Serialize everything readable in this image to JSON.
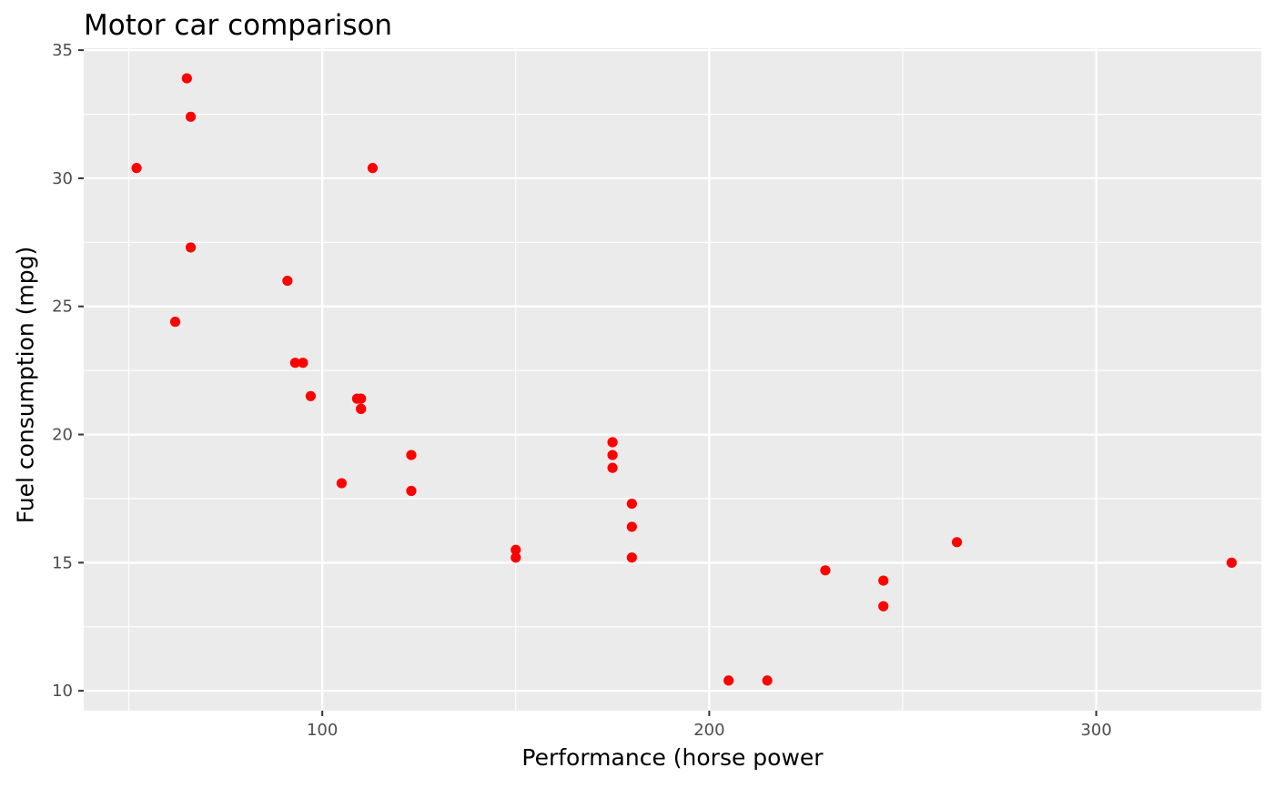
{
  "chart_data": {
    "type": "scatter",
    "title": "Motor car comparison",
    "xlabel": "Performance (horse power",
    "ylabel": "Fuel consumption (mpg)",
    "xlim": [
      38.35,
      342.65
    ],
    "ylim": [
      9.225,
      35.075
    ],
    "x_ticks": [
      100,
      200,
      300
    ],
    "y_ticks": [
      10,
      15,
      20,
      25,
      30,
      35
    ],
    "grid": true,
    "point_color": "#ff0000",
    "panel_background": "#ebebeb",
    "grid_color": "#ffffff",
    "points": [
      {
        "x": 110,
        "y": 21.0
      },
      {
        "x": 110,
        "y": 21.0
      },
      {
        "x": 93,
        "y": 22.8
      },
      {
        "x": 110,
        "y": 21.4
      },
      {
        "x": 175,
        "y": 18.7
      },
      {
        "x": 105,
        "y": 18.1
      },
      {
        "x": 245,
        "y": 14.3
      },
      {
        "x": 62,
        "y": 24.4
      },
      {
        "x": 95,
        "y": 22.8
      },
      {
        "x": 123,
        "y": 19.2
      },
      {
        "x": 123,
        "y": 17.8
      },
      {
        "x": 180,
        "y": 16.4
      },
      {
        "x": 180,
        "y": 17.3
      },
      {
        "x": 180,
        "y": 15.2
      },
      {
        "x": 205,
        "y": 10.4
      },
      {
        "x": 215,
        "y": 10.4
      },
      {
        "x": 230,
        "y": 14.7
      },
      {
        "x": 66,
        "y": 32.4
      },
      {
        "x": 52,
        "y": 30.4
      },
      {
        "x": 65,
        "y": 33.9
      },
      {
        "x": 97,
        "y": 21.5
      },
      {
        "x": 150,
        "y": 15.5
      },
      {
        "x": 150,
        "y": 15.2
      },
      {
        "x": 245,
        "y": 13.3
      },
      {
        "x": 175,
        "y": 19.2
      },
      {
        "x": 66,
        "y": 27.3
      },
      {
        "x": 91,
        "y": 26.0
      },
      {
        "x": 113,
        "y": 30.4
      },
      {
        "x": 264,
        "y": 15.8
      },
      {
        "x": 175,
        "y": 19.7
      },
      {
        "x": 335,
        "y": 15.0
      },
      {
        "x": 109,
        "y": 21.4
      }
    ]
  }
}
